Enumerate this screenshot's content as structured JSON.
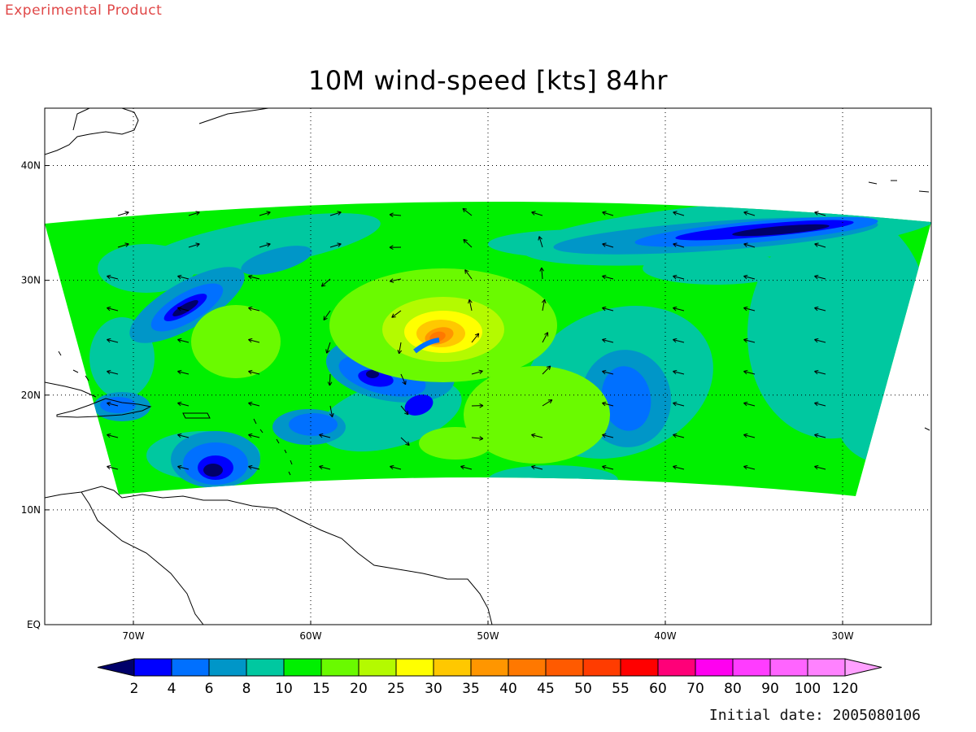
{
  "watermark": "Experimental Product",
  "title": "10M wind-speed [kts] 84hr",
  "initial_date_text": "Initial date: 2005080106",
  "axes": {
    "lon_range": [
      -75,
      -25
    ],
    "lat_range": [
      0,
      45
    ],
    "lon_ticks": [
      -70,
      -60,
      -50,
      -40,
      -30
    ],
    "lon_tick_labels": [
      "70W",
      "60W",
      "50W",
      "40W",
      "30W"
    ],
    "lat_ticks": [
      0,
      10,
      20,
      30,
      40
    ],
    "lat_tick_labels": [
      "EQ",
      "10N",
      "20N",
      "30N",
      "40N"
    ],
    "grid": "dotted"
  },
  "colorbar": {
    "labels": [
      "2",
      "4",
      "6",
      "8",
      "10",
      "15",
      "20",
      "25",
      "30",
      "35",
      "40",
      "45",
      "50",
      "55",
      "60",
      "70",
      "80",
      "90",
      "100",
      "120"
    ],
    "colors": [
      "#00006a",
      "#0000ff",
      "#0070ff",
      "#0096c8",
      "#00c8a0",
      "#00f000",
      "#6afa00",
      "#b4fa00",
      "#ffff00",
      "#ffc800",
      "#ff9600",
      "#ff7800",
      "#ff5a00",
      "#ff3c00",
      "#ff0000",
      "#ff0078",
      "#ff00f0",
      "#ff3cff",
      "#ff64ff",
      "#ff82ff",
      "#ffa0ff"
    ]
  },
  "storm_center": {
    "lon": -53,
    "lat": 25.3
  },
  "colors": {
    "land_outline": "#000000",
    "background": "#ffffff",
    "watermark": "#e04848"
  }
}
